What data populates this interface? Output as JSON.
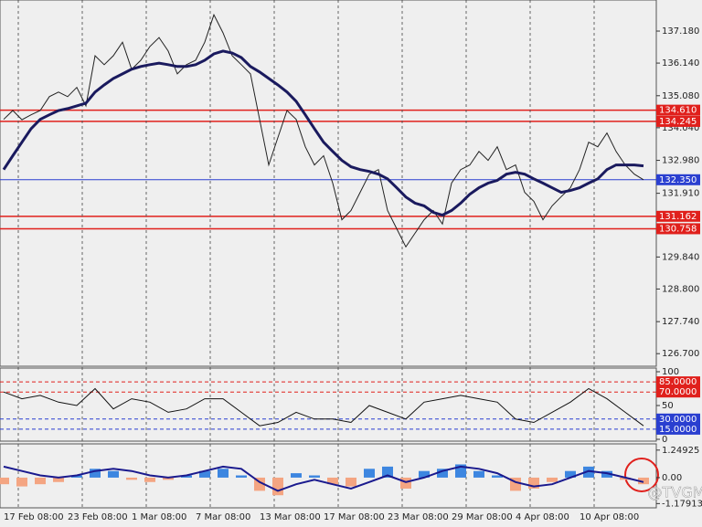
{
  "chart_data": [
    {
      "type": "line",
      "categories": [
        "17 Feb 08:00",
        null,
        null,
        null,
        null,
        null,
        null,
        "23 Feb 08:00",
        null,
        null,
        null,
        null,
        null,
        null,
        "1 Mar 08:00",
        null,
        null,
        null,
        null,
        null,
        null,
        "7 Mar 08:00",
        null,
        null,
        null,
        null,
        null,
        null,
        "13 Mar 08:00",
        null,
        null,
        null,
        null,
        null,
        null,
        "17 Mar 08:00",
        null,
        null,
        null,
        null,
        null,
        null,
        "23 Mar 08:00",
        null,
        null,
        null,
        null,
        null,
        null,
        "29 Mar 08:00",
        null,
        null,
        null,
        null,
        null,
        null,
        "4 Apr 08:00",
        null,
        null,
        null,
        null,
        null,
        null,
        "10 Apr 08:00",
        null,
        null,
        null,
        null,
        null,
        null,
        null
      ],
      "series": [
        {
          "color": "#222222",
          "values": [
            134.31,
            134.6,
            134.3,
            134.46,
            134.6,
            135.05,
            135.2,
            135.05,
            135.35,
            134.75,
            136.38,
            136.09,
            136.38,
            136.82,
            135.94,
            136.23,
            136.68,
            136.97,
            136.53,
            135.79,
            136.09,
            136.23,
            136.82,
            137.71,
            137.12,
            136.38,
            136.09,
            135.79,
            134.31,
            132.83,
            133.72,
            134.6,
            134.31,
            133.42,
            132.83,
            133.13,
            132.24,
            131.05,
            131.35,
            131.94,
            132.53,
            132.68,
            131.35,
            130.76,
            130.17,
            130.61,
            131.05,
            131.35,
            130.91,
            132.24,
            132.68,
            132.83,
            133.27,
            132.98,
            133.42,
            132.68,
            132.83,
            131.94,
            131.65,
            131.05,
            131.5,
            131.8,
            132.09,
            132.68,
            133.57,
            133.42,
            133.87,
            133.27,
            132.83,
            132.53,
            132.35
          ]
        },
        {
          "color": "#1a1a5e",
          "values": [
            132.68,
            133.13,
            133.57,
            134.01,
            134.31,
            134.46,
            134.6,
            134.66,
            134.75,
            134.84,
            135.2,
            135.43,
            135.64,
            135.79,
            135.94,
            136.03,
            136.09,
            136.14,
            136.09,
            136.03,
            136.03,
            136.09,
            136.23,
            136.44,
            136.53,
            136.47,
            136.32,
            136.03,
            135.85,
            135.64,
            135.43,
            135.2,
            134.9,
            134.46,
            134.01,
            133.57,
            133.27,
            132.98,
            132.77,
            132.68,
            132.62,
            132.53,
            132.38,
            132.09,
            131.79,
            131.59,
            131.5,
            131.29,
            131.2,
            131.35,
            131.59,
            131.88,
            132.09,
            132.24,
            132.33,
            132.53,
            132.59,
            132.53,
            132.38,
            132.24,
            132.09,
            131.94,
            132.0,
            132.09,
            132.24,
            132.38,
            132.68,
            132.83,
            132.83,
            132.83,
            132.8
          ]
        }
      ],
      "ylim": [
        126.32,
        138.16
      ],
      "yticks": [
        {
          "value": 137.18,
          "label": "137.180"
        },
        {
          "value": 136.14,
          "label": "136.140"
        },
        {
          "value": 135.08,
          "label": "135.080"
        },
        {
          "value": 134.04,
          "label": "134.040"
        },
        {
          "value": 132.98,
          "label": "132.980"
        },
        {
          "value": 131.91,
          "label": "131.910"
        },
        {
          "value": 129.84,
          "label": "129.840"
        },
        {
          "value": 128.8,
          "label": "128.800"
        },
        {
          "value": 127.74,
          "label": "127.740"
        },
        {
          "value": 126.7,
          "label": "126.700"
        }
      ],
      "levels": [
        {
          "value": 134.61,
          "label": "134.610",
          "color": "#e0201c"
        },
        {
          "value": 134.245,
          "label": "134.245",
          "color": "#e0201c"
        },
        {
          "value": 132.35,
          "label": "132.350",
          "color": "#2a3fd0"
        },
        {
          "value": 131.162,
          "label": "131.162",
          "color": "#e0201c"
        },
        {
          "value": 130.758,
          "label": "130.758",
          "color": "#e0201c"
        }
      ],
      "grid": true
    },
    {
      "type": "line",
      "series": [
        {
          "color": "#111111",
          "values": [
            70,
            60,
            65,
            55,
            50,
            75,
            45,
            60,
            55,
            40,
            45,
            60,
            60,
            40,
            20,
            25,
            40,
            30,
            30,
            25,
            50,
            40,
            30,
            55,
            60,
            65,
            60,
            55,
            30,
            25,
            40,
            55,
            75,
            60,
            40,
            20
          ]
        }
      ],
      "ylim": [
        0,
        100
      ],
      "yticks": [
        100,
        50,
        0
      ],
      "levels": [
        {
          "value": 85,
          "label": "85.0000",
          "color": "#e0201c"
        },
        {
          "value": 70,
          "label": "70.0000",
          "color": "#e0201c"
        },
        {
          "value": 30,
          "label": "30.0000",
          "color": "#2a3fd0"
        },
        {
          "value": 15,
          "label": "15.0000",
          "color": "#2a3fd0"
        }
      ]
    },
    {
      "type": "bar",
      "values": [
        -0.3,
        -0.4,
        -0.3,
        -0.2,
        0.1,
        0.4,
        0.3,
        -0.1,
        -0.2,
        -0.1,
        0.1,
        0.3,
        0.4,
        0.1,
        -0.6,
        -0.8,
        0.2,
        0.1,
        -0.3,
        -0.4,
        0.4,
        0.5,
        -0.5,
        0.3,
        0.4,
        0.6,
        0.3,
        0.1,
        -0.6,
        -0.5,
        -0.2,
        0.3,
        0.5,
        0.3,
        -0.1,
        -0.3
      ],
      "colors": {
        "positive": "#3d86e0",
        "negative": "#f4a582"
      },
      "line": {
        "color": "#1a1a8e",
        "values": [
          0.5,
          0.3,
          0.1,
          0,
          0.1,
          0.3,
          0.4,
          0.3,
          0.1,
          0,
          0.1,
          0.3,
          0.5,
          0.4,
          -0.2,
          -0.6,
          -0.3,
          -0.1,
          -0.3,
          -0.5,
          -0.2,
          0.1,
          -0.2,
          0,
          0.3,
          0.5,
          0.4,
          0.2,
          -0.2,
          -0.4,
          -0.3,
          0,
          0.3,
          0.2,
          0,
          -0.2
        ]
      },
      "ylim": [
        -1.33,
        1.49
      ],
      "yticks": [
        {
          "value": 1.24925,
          "label": "1.24925"
        },
        {
          "value": 0,
          "label": "0.00"
        },
        {
          "value": -1.17913,
          "label": "-1.17913"
        }
      ],
      "watermark": "@TVGM"
    }
  ]
}
